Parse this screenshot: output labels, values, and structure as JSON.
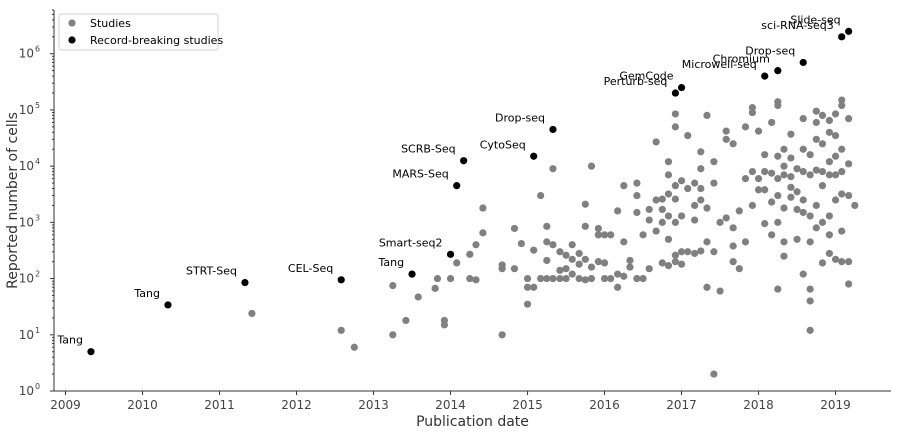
{
  "chart_data": {
    "type": "scatter",
    "xlabel": "Publication date",
    "ylabel": "Reported number of cells",
    "xlim": [
      2008.85,
      2019.72
    ],
    "ylim": [
      1,
      6000000
    ],
    "y_scale": "log",
    "x_ticks": [
      2009,
      2010,
      2011,
      2012,
      2013,
      2014,
      2015,
      2016,
      2017,
      2018,
      2019
    ],
    "y_ticks": [
      {
        "value": 1,
        "base": "10",
        "exp": "0"
      },
      {
        "value": 10,
        "base": "10",
        "exp": "1"
      },
      {
        "value": 100,
        "base": "10",
        "exp": "2"
      },
      {
        "value": 1000,
        "base": "10",
        "exp": "3"
      },
      {
        "value": 10000,
        "base": "10",
        "exp": "4"
      },
      {
        "value": 100000,
        "base": "10",
        "exp": "5"
      },
      {
        "value": 1000000,
        "base": "10",
        "exp": "6"
      }
    ],
    "grid": false,
    "legend_position": "top-left",
    "colors": {
      "studies": "#808080",
      "record": "#000000"
    },
    "series": [
      {
        "name": "Studies",
        "points": [
          [
            2011.42,
            24
          ],
          [
            2012.58,
            12
          ],
          [
            2012.75,
            6
          ],
          [
            2013.25,
            10
          ],
          [
            2013.25,
            75
          ],
          [
            2013.42,
            18
          ],
          [
            2013.58,
            47
          ],
          [
            2013.8,
            67
          ],
          [
            2013.83,
            100
          ],
          [
            2013.92,
            15
          ],
          [
            2013.92,
            18
          ],
          [
            2014.0,
            100
          ],
          [
            2014.08,
            190
          ],
          [
            2014.25,
            100
          ],
          [
            2014.25,
            270
          ],
          [
            2014.33,
            95
          ],
          [
            2014.33,
            400
          ],
          [
            2014.42,
            650
          ],
          [
            2014.42,
            1800
          ],
          [
            2014.67,
            10
          ],
          [
            2014.67,
            150
          ],
          [
            2014.67,
            175
          ],
          [
            2014.83,
            150
          ],
          [
            2014.83,
            780
          ],
          [
            2014.92,
            420
          ],
          [
            2015.0,
            35
          ],
          [
            2015.0,
            70
          ],
          [
            2015.0,
            100
          ],
          [
            2015.08,
            70
          ],
          [
            2015.08,
            320
          ],
          [
            2015.17,
            100
          ],
          [
            2015.17,
            3000
          ],
          [
            2015.25,
            100
          ],
          [
            2015.25,
            210
          ],
          [
            2015.25,
            450
          ],
          [
            2015.25,
            850
          ],
          [
            2015.33,
            100
          ],
          [
            2015.33,
            400
          ],
          [
            2015.33,
            9000
          ],
          [
            2015.42,
            100
          ],
          [
            2015.42,
            140
          ],
          [
            2015.42,
            300
          ],
          [
            2015.5,
            100
          ],
          [
            2015.5,
            150
          ],
          [
            2015.5,
            260
          ],
          [
            2015.58,
            120
          ],
          [
            2015.58,
            220
          ],
          [
            2015.58,
            400
          ],
          [
            2015.67,
            100
          ],
          [
            2015.67,
            180
          ],
          [
            2015.67,
            280
          ],
          [
            2015.75,
            95
          ],
          [
            2015.75,
            220
          ],
          [
            2015.75,
            850
          ],
          [
            2015.75,
            2100
          ],
          [
            2015.83,
            100
          ],
          [
            2015.83,
            160
          ],
          [
            2015.83,
            10000
          ],
          [
            2015.92,
            200
          ],
          [
            2015.92,
            600
          ],
          [
            2015.92,
            780
          ],
          [
            2016.0,
            100
          ],
          [
            2016.0,
            190
          ],
          [
            2016.0,
            600
          ],
          [
            2016.08,
            100
          ],
          [
            2016.08,
            600
          ],
          [
            2016.17,
            70
          ],
          [
            2016.17,
            120
          ],
          [
            2016.17,
            1600
          ],
          [
            2016.25,
            110
          ],
          [
            2016.25,
            450
          ],
          [
            2016.25,
            4500
          ],
          [
            2016.33,
            160
          ],
          [
            2016.33,
            210
          ],
          [
            2016.42,
            100
          ],
          [
            2016.42,
            1500
          ],
          [
            2016.42,
            3000
          ],
          [
            2016.42,
            5000
          ],
          [
            2016.5,
            100
          ],
          [
            2016.5,
            600
          ],
          [
            2016.58,
            150
          ],
          [
            2016.58,
            1100
          ],
          [
            2016.58,
            1700
          ],
          [
            2016.67,
            700
          ],
          [
            2016.67,
            2500
          ],
          [
            2016.67,
            27000
          ],
          [
            2016.75,
            190
          ],
          [
            2016.75,
            1000
          ],
          [
            2016.75,
            1700
          ],
          [
            2016.75,
            2600
          ],
          [
            2016.83,
            170
          ],
          [
            2016.83,
            500
          ],
          [
            2016.83,
            1300
          ],
          [
            2016.83,
            3200
          ],
          [
            2016.83,
            7000
          ],
          [
            2016.83,
            12000
          ],
          [
            2016.92,
            200
          ],
          [
            2016.92,
            260
          ],
          [
            2016.92,
            1000
          ],
          [
            2016.92,
            2600
          ],
          [
            2016.92,
            4500
          ],
          [
            2016.92,
            50000
          ],
          [
            2016.92,
            85000
          ],
          [
            2017.0,
            180
          ],
          [
            2017.0,
            300
          ],
          [
            2017.0,
            1300
          ],
          [
            2017.0,
            5500
          ],
          [
            2017.08,
            300
          ],
          [
            2017.08,
            4000
          ],
          [
            2017.08,
            35000
          ],
          [
            2017.17,
            280
          ],
          [
            2017.17,
            1100
          ],
          [
            2017.17,
            2000
          ],
          [
            2017.17,
            5000
          ],
          [
            2017.25,
            310
          ],
          [
            2017.25,
            2500
          ],
          [
            2017.25,
            4000
          ],
          [
            2017.25,
            9000
          ],
          [
            2017.25,
            18000
          ],
          [
            2017.33,
            70
          ],
          [
            2017.33,
            450
          ],
          [
            2017.33,
            1800
          ],
          [
            2017.33,
            80000
          ],
          [
            2017.42,
            2
          ],
          [
            2017.42,
            300
          ],
          [
            2017.42,
            5000
          ],
          [
            2017.42,
            12000
          ],
          [
            2017.5,
            60
          ],
          [
            2017.5,
            1000
          ],
          [
            2017.58,
            1200
          ],
          [
            2017.58,
            30000
          ],
          [
            2017.58,
            42000
          ],
          [
            2017.67,
            200
          ],
          [
            2017.67,
            380
          ],
          [
            2017.67,
            800
          ],
          [
            2017.67,
            25000
          ],
          [
            2017.75,
            150
          ],
          [
            2017.75,
            1600
          ],
          [
            2017.83,
            450
          ],
          [
            2017.83,
            6000
          ],
          [
            2017.83,
            50000
          ],
          [
            2017.92,
            2000
          ],
          [
            2017.92,
            8000
          ],
          [
            2017.92,
            90000
          ],
          [
            2017.92,
            110000
          ],
          [
            2018.0,
            3800
          ],
          [
            2018.0,
            6000
          ],
          [
            2018.0,
            42000
          ],
          [
            2018.08,
            950
          ],
          [
            2018.08,
            3800
          ],
          [
            2018.08,
            8000
          ],
          [
            2018.08,
            16000
          ],
          [
            2018.17,
            600
          ],
          [
            2018.17,
            2300
          ],
          [
            2018.17,
            7500
          ],
          [
            2018.17,
            60000
          ],
          [
            2018.25,
            65
          ],
          [
            2018.25,
            1000
          ],
          [
            2018.25,
            3000
          ],
          [
            2018.25,
            6000
          ],
          [
            2018.25,
            15000
          ],
          [
            2018.25,
            120000
          ],
          [
            2018.25,
            140000
          ],
          [
            2018.33,
            250
          ],
          [
            2018.33,
            450
          ],
          [
            2018.33,
            1800
          ],
          [
            2018.33,
            7000
          ],
          [
            2018.33,
            10000
          ],
          [
            2018.33,
            20000
          ],
          [
            2018.42,
            2800
          ],
          [
            2018.42,
            4200
          ],
          [
            2018.42,
            6500
          ],
          [
            2018.42,
            14000
          ],
          [
            2018.42,
            37000
          ],
          [
            2018.5,
            500
          ],
          [
            2018.5,
            1700
          ],
          [
            2018.5,
            3500
          ],
          [
            2018.5,
            9000
          ],
          [
            2018.58,
            120
          ],
          [
            2018.58,
            1500
          ],
          [
            2018.58,
            2500
          ],
          [
            2018.58,
            8000
          ],
          [
            2018.58,
            20000
          ],
          [
            2018.58,
            70000
          ],
          [
            2018.67,
            12
          ],
          [
            2018.67,
            40
          ],
          [
            2018.67,
            65
          ],
          [
            2018.67,
            450
          ],
          [
            2018.67,
            1300
          ],
          [
            2018.67,
            7000
          ],
          [
            2018.67,
            16000
          ],
          [
            2018.75,
            800
          ],
          [
            2018.75,
            2000
          ],
          [
            2018.75,
            8500
          ],
          [
            2018.75,
            30000
          ],
          [
            2018.75,
            95000
          ],
          [
            2018.75,
            60000
          ],
          [
            2018.83,
            190
          ],
          [
            2018.83,
            1000
          ],
          [
            2018.83,
            4500
          ],
          [
            2018.83,
            8000
          ],
          [
            2018.83,
            25000
          ],
          [
            2018.83,
            80000
          ],
          [
            2018.92,
            280
          ],
          [
            2018.92,
            600
          ],
          [
            2018.92,
            1300
          ],
          [
            2018.92,
            7000
          ],
          [
            2018.92,
            12000
          ],
          [
            2018.92,
            40000
          ],
          [
            2018.92,
            65000
          ],
          [
            2019.0,
            220
          ],
          [
            2019.0,
            2500
          ],
          [
            2019.0,
            7000
          ],
          [
            2019.0,
            15000
          ],
          [
            2019.0,
            35000
          ],
          [
            2019.0,
            85000
          ],
          [
            2019.08,
            200
          ],
          [
            2019.08,
            700
          ],
          [
            2019.08,
            3200
          ],
          [
            2019.08,
            8000
          ],
          [
            2019.08,
            20000
          ],
          [
            2019.08,
            150000
          ],
          [
            2019.08,
            120000
          ],
          [
            2019.17,
            80
          ],
          [
            2019.17,
            200
          ],
          [
            2019.17,
            3000
          ],
          [
            2019.17,
            11000
          ],
          [
            2019.17,
            70000
          ],
          [
            2019.25,
            2000
          ]
        ]
      },
      {
        "name": "Record-breaking studies",
        "points": [
          [
            2009.33,
            5
          ],
          [
            2010.33,
            34
          ],
          [
            2011.33,
            85
          ],
          [
            2012.58,
            95
          ],
          [
            2013.5,
            120
          ],
          [
            2014.0,
            270
          ],
          [
            2014.08,
            4500
          ],
          [
            2014.17,
            12500
          ],
          [
            2015.08,
            15000
          ],
          [
            2015.33,
            45000
          ],
          [
            2016.92,
            200000
          ],
          [
            2017.0,
            250000
          ],
          [
            2018.08,
            400000
          ],
          [
            2018.25,
            500000
          ],
          [
            2018.58,
            700000
          ],
          [
            2019.08,
            2000000
          ],
          [
            2019.17,
            2500000
          ]
        ]
      }
    ],
    "annotations": [
      {
        "text": "Tang",
        "x": 2009.33,
        "y": 5,
        "anchor": "end"
      },
      {
        "text": "Tang",
        "x": 2010.33,
        "y": 34,
        "anchor": "end"
      },
      {
        "text": "STRT-Seq",
        "x": 2011.33,
        "y": 85,
        "anchor": "end"
      },
      {
        "text": "CEL-Seq",
        "x": 2012.58,
        "y": 95,
        "anchor": "end"
      },
      {
        "text": "Tang",
        "x": 2013.5,
        "y": 120,
        "anchor": "end"
      },
      {
        "text": "Smart-seq2",
        "x": 2014.0,
        "y": 270,
        "anchor": "end"
      },
      {
        "text": "MARS-Seq",
        "x": 2014.08,
        "y": 4500,
        "anchor": "end"
      },
      {
        "text": "SCRB-Seq",
        "x": 2014.17,
        "y": 12500,
        "anchor": "end"
      },
      {
        "text": "CytoSeq",
        "x": 2015.08,
        "y": 15000,
        "anchor": "end"
      },
      {
        "text": "Drop-seq",
        "x": 2015.33,
        "y": 45000,
        "anchor": "end"
      },
      {
        "text": "Perturb-seq",
        "x": 2016.92,
        "y": 200000,
        "anchor": "end"
      },
      {
        "text": "GemCode",
        "x": 2017.0,
        "y": 250000,
        "anchor": "end"
      },
      {
        "text": "Microwell-seq",
        "x": 2018.08,
        "y": 400000,
        "anchor": "end"
      },
      {
        "text": "Chromium",
        "x": 2018.25,
        "y": 500000,
        "anchor": "end"
      },
      {
        "text": "Drop-seq",
        "x": 2018.58,
        "y": 700000,
        "anchor": "end"
      },
      {
        "text": "sci-RNA-seq3",
        "x": 2019.08,
        "y": 2000000,
        "anchor": "end"
      },
      {
        "text": "Slide-seq",
        "x": 2019.17,
        "y": 2500000,
        "anchor": "end"
      }
    ]
  }
}
